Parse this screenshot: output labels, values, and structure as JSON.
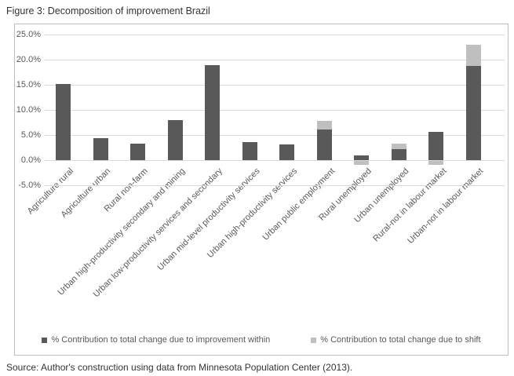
{
  "source_note": "Source: Author's construction using data from Minnesota Population Center (2013).",
  "colors": {
    "within_bar": "#595959",
    "shift_bar": "#bfbfbf",
    "gridline": "#d9d9d9",
    "chart_border": "#bfbfbf",
    "axis_text": "#595959",
    "title_text": "#333333"
  },
  "chart_data": {
    "type": "bar",
    "stacked": true,
    "title": "Figure 3: Decomposition of improvement Brazil",
    "categories": [
      "Agriculture rural",
      "Agriculture urban",
      "Rural non-farm",
      "Urban high-productivity secondary and mining",
      "Urban low-productivity services and secondary",
      "Urban mid-level productivity services",
      "Urban high-productivity services",
      "Urban public employment",
      "Rural unemployed",
      "Urban unemployed",
      "Rural-not in labour market",
      "Urban-not in labour market"
    ],
    "series": [
      {
        "name": "% Contribution to total change due to improvement within",
        "color": "#595959",
        "values": [
          15.2,
          4.3,
          3.3,
          7.9,
          18.9,
          3.6,
          3.2,
          6.1,
          1.0,
          2.2,
          5.6,
          18.8
        ]
      },
      {
        "name": "% Contribution to total change due to shift",
        "color": "#bfbfbf",
        "values": [
          0,
          0,
          0,
          0,
          0,
          0,
          0,
          1.7,
          -1.0,
          1.1,
          -0.9,
          4.2
        ]
      }
    ],
    "ylim": [
      -5,
      25
    ],
    "ytick_step": 5,
    "ytick_labels": [
      "25.0%",
      "20.0%",
      "15.0%",
      "10.0%",
      "5.0%",
      "0.0%",
      "-5.0%"
    ],
    "grid": true,
    "legend_position": "bottom-inside"
  }
}
